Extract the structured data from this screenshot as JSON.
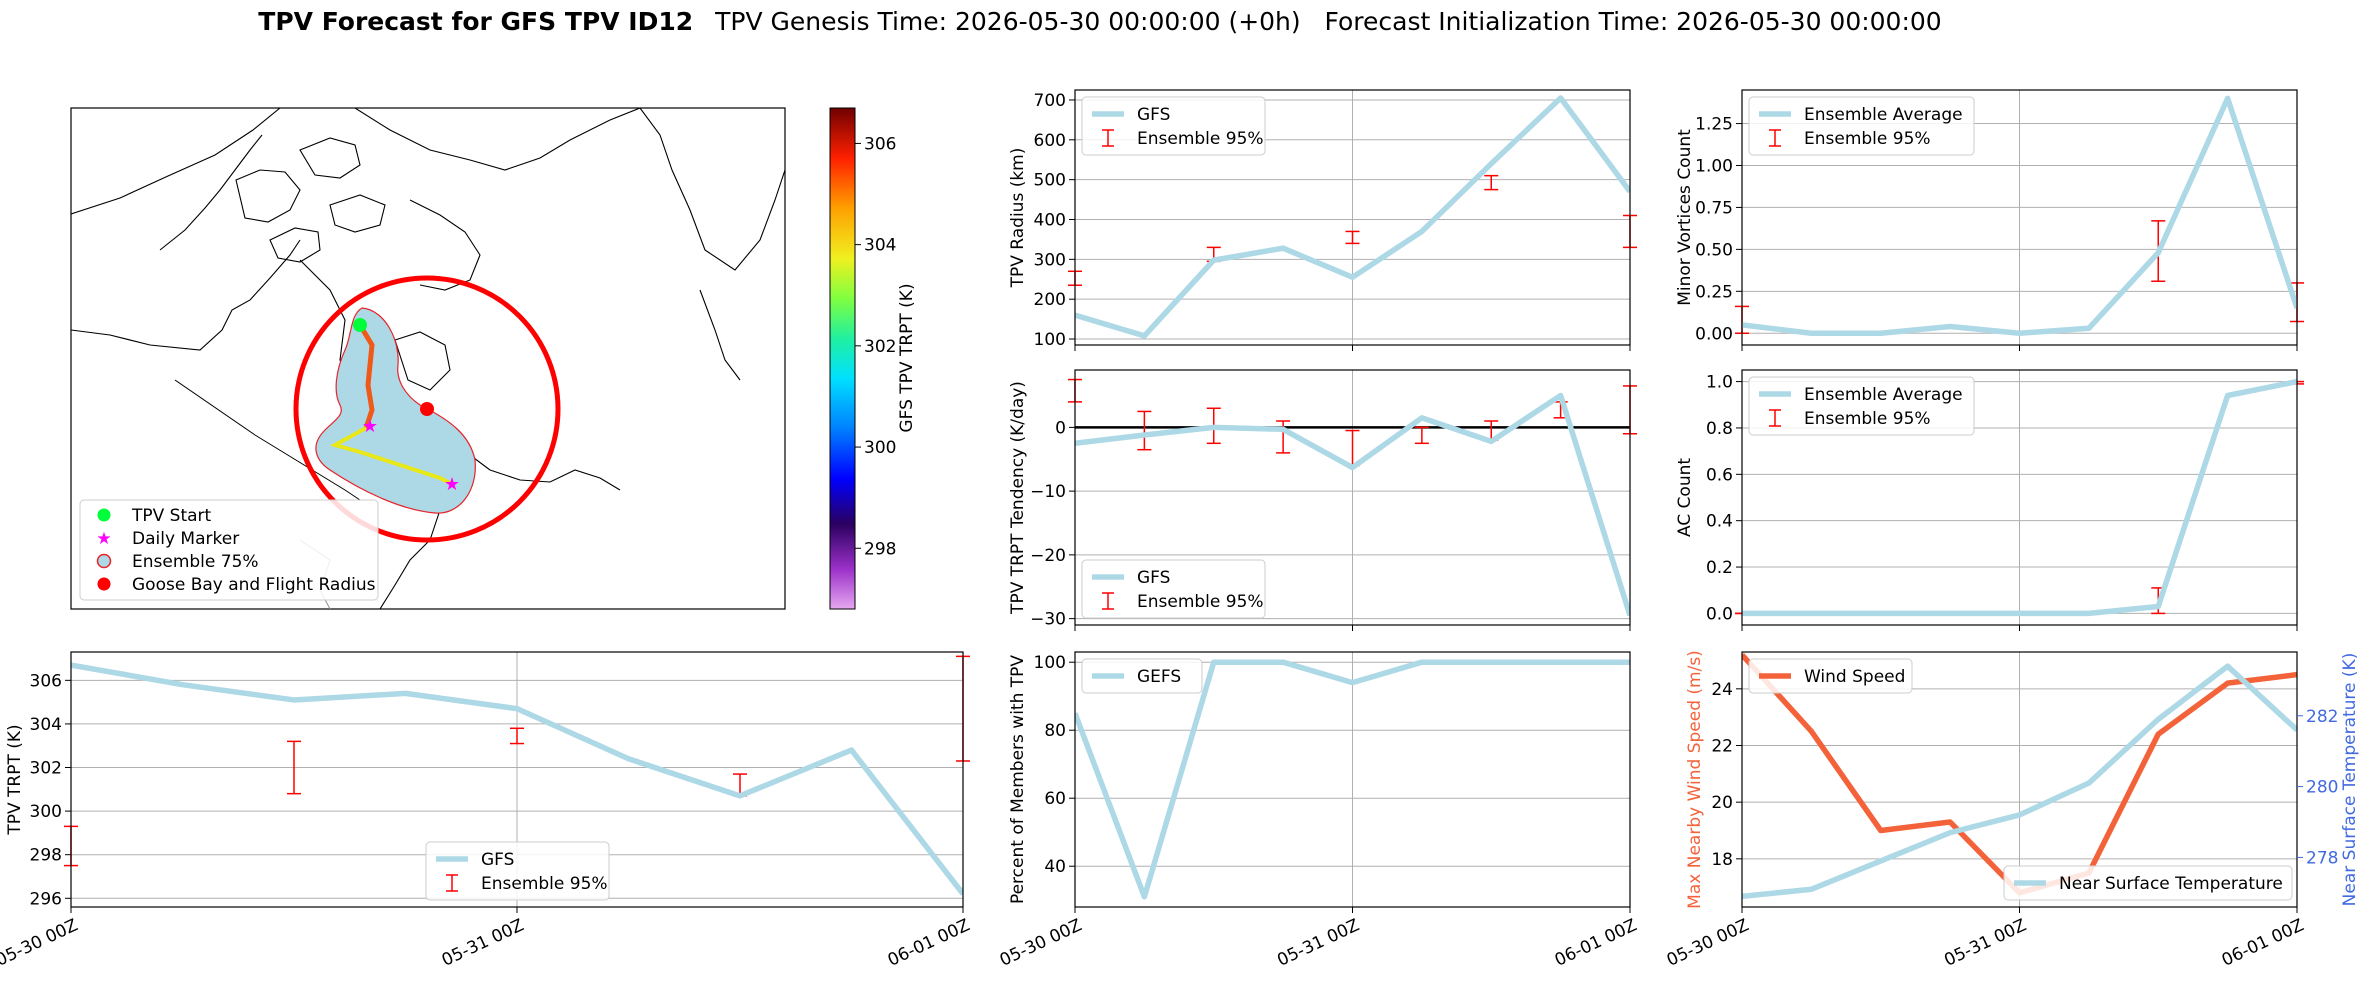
{
  "title": {
    "bold": "TPV Forecast for GFS TPV ID12",
    "rest": "TPV Genesis Time: 2026-05-30 00:00:00 (+0h)   Forecast Initialization Time: 2026-05-30 00:00:00"
  },
  "colors": {
    "gfs": "#add8e6",
    "ensemble": "#ff0000",
    "wind": "#f4623a",
    "temp_axis": "#4169e1",
    "wind_axis": "#f4623a",
    "zero_line": "#000000"
  },
  "time_ticks": [
    "05-30 00Z",
    "05-31 00Z",
    "06-01 00Z"
  ],
  "map": {
    "colorbar": {
      "label": "GFS TPV TRPT (K)",
      "ticks": [
        "298",
        "300",
        "302",
        "304",
        "306"
      ],
      "range": [
        296.8,
        306.7
      ]
    },
    "legend": [
      "TPV Start",
      "Daily Marker",
      "Ensemble 75%",
      "Goose Bay and Flight Radius"
    ]
  },
  "chart_data": [
    {
      "id": "radius",
      "type": "line",
      "ylabel": "TPV Radius (km)",
      "yticks": [
        "100",
        "200",
        "300",
        "400",
        "500",
        "600",
        "700"
      ],
      "ylim": [
        85,
        725
      ],
      "legend": [
        "GFS",
        "Ensemble 95%"
      ],
      "series": [
        {
          "name": "GFS",
          "values": [
            160,
            108,
            298,
            328,
            255,
            370,
            540,
            705,
            470
          ]
        }
      ],
      "errorbars": [
        [
          235,
          270
        ],
        [
          295,
          330
        ],
        [
          340,
          370
        ],
        [
          475,
          510
        ],
        [
          330,
          410
        ]
      ],
      "err_x": [
        0,
        2,
        4,
        6,
        8
      ]
    },
    {
      "id": "minor",
      "type": "line",
      "ylabel": "Minor Vortices Count",
      "yticks": [
        "0.00",
        "0.25",
        "0.50",
        "0.75",
        "1.00",
        "1.25"
      ],
      "ylim": [
        -0.07,
        1.45
      ],
      "legend": [
        "Ensemble Average",
        "Ensemble 95%"
      ],
      "series": [
        {
          "name": "Ensemble Average",
          "values": [
            0.05,
            0.0,
            0.0,
            0.04,
            0.0,
            0.03,
            0.48,
            1.4,
            0.15
          ]
        }
      ],
      "errorbars": [
        [
          0.0,
          0.16
        ],
        [
          0.0,
          0.0
        ],
        [
          0.0,
          0.0
        ],
        [
          0.31,
          0.67
        ],
        [
          0.07,
          0.3
        ]
      ],
      "err_x": [
        0,
        2,
        4,
        6,
        8
      ]
    },
    {
      "id": "tendency",
      "type": "line",
      "ylabel": "TPV TRPT Tendency (K/day)",
      "yticks": [
        "−30",
        "−20",
        "−10",
        "0"
      ],
      "ylim": [
        -31,
        9
      ],
      "legend": [
        "GFS",
        "Ensemble 95%"
      ],
      "series": [
        {
          "name": "GFS",
          "values": [
            -2.5,
            -1.2,
            0.0,
            -0.3,
            -6.3,
            1.5,
            -2.2,
            5.0,
            -29.5
          ]
        }
      ],
      "errorbars": [
        [
          4.0,
          7.5
        ],
        [
          -3.5,
          2.5
        ],
        [
          -2.5,
          3.0
        ],
        [
          -4.0,
          1.0
        ],
        [
          -6.0,
          -0.5
        ],
        [
          -2.5,
          0.0
        ],
        [
          -2.0,
          1.0
        ],
        [
          1.5,
          4.0
        ],
        [
          -1.0,
          6.5
        ]
      ],
      "err_x": [
        0,
        1,
        2,
        3,
        4,
        5,
        6,
        7,
        8
      ]
    },
    {
      "id": "ac",
      "type": "line",
      "ylabel": "AC Count",
      "yticks": [
        "0.0",
        "0.2",
        "0.4",
        "0.6",
        "0.8",
        "1.0"
      ],
      "ylim": [
        -0.05,
        1.05
      ],
      "legend": [
        "Ensemble Average",
        "Ensemble 95%"
      ],
      "series": [
        {
          "name": "Ensemble Average",
          "values": [
            0.0,
            0.0,
            0.0,
            0.0,
            0.0,
            0.0,
            0.03,
            0.94,
            1.0
          ]
        }
      ],
      "errorbars": [
        [
          0.0,
          0.0
        ],
        [
          0.0,
          0.0
        ],
        [
          0.0,
          0.0
        ],
        [
          0.0,
          0.11
        ],
        [
          0.99,
          1.0
        ]
      ],
      "err_x": [
        0,
        2,
        4,
        6,
        8
      ]
    },
    {
      "id": "trpt",
      "type": "line",
      "ylabel": "TPV TRPT (K)",
      "yticks": [
        "296",
        "298",
        "300",
        "302",
        "304",
        "306"
      ],
      "ylim": [
        295.6,
        307.3
      ],
      "legend": [
        "GFS",
        "Ensemble 95%"
      ],
      "series": [
        {
          "name": "GFS",
          "values": [
            306.7,
            305.8,
            305.1,
            305.4,
            304.7,
            302.4,
            300.7,
            302.8,
            296.2
          ]
        }
      ],
      "errorbars": [
        [
          297.5,
          299.3
        ],
        [
          300.8,
          303.2
        ],
        [
          303.1,
          303.8
        ],
        [
          300.7,
          301.7
        ],
        [
          302.3,
          307.1
        ]
      ],
      "err_x": [
        0,
        2,
        4,
        6,
        8
      ]
    },
    {
      "id": "members",
      "type": "line",
      "ylabel": "Percent of Members with TPV",
      "yticks": [
        "40",
        "60",
        "80",
        "100"
      ],
      "ylim": [
        28,
        103
      ],
      "legend": [
        "GEFS"
      ],
      "series": [
        {
          "name": "GEFS",
          "values": [
            85,
            31,
            100,
            100,
            94,
            100,
            100,
            100,
            100
          ]
        }
      ]
    },
    {
      "id": "wind_temp",
      "type": "line",
      "ylabel": "Max Nearby Wind Speed (m/s)",
      "ylabel_right": "Near Surface Temperature (K)",
      "yticks": [
        "18",
        "20",
        "22",
        "24"
      ],
      "ylim": [
        16.3,
        25.3
      ],
      "yticks_right": [
        "278",
        "280",
        "282"
      ],
      "ylim_right": [
        276.6,
        283.8
      ],
      "legend": [
        "Wind Speed"
      ],
      "legend_right": [
        "Near Surface Temperature"
      ],
      "series": [
        {
          "name": "Wind Speed",
          "values": [
            25.2,
            22.5,
            19.0,
            19.3,
            16.8,
            17.5,
            22.4,
            24.2,
            24.5
          ]
        },
        {
          "name": "Near Surface Temperature",
          "values": [
            276.9,
            277.1,
            277.9,
            278.7,
            279.2,
            280.1,
            281.9,
            283.4,
            281.6
          ]
        }
      ]
    }
  ]
}
